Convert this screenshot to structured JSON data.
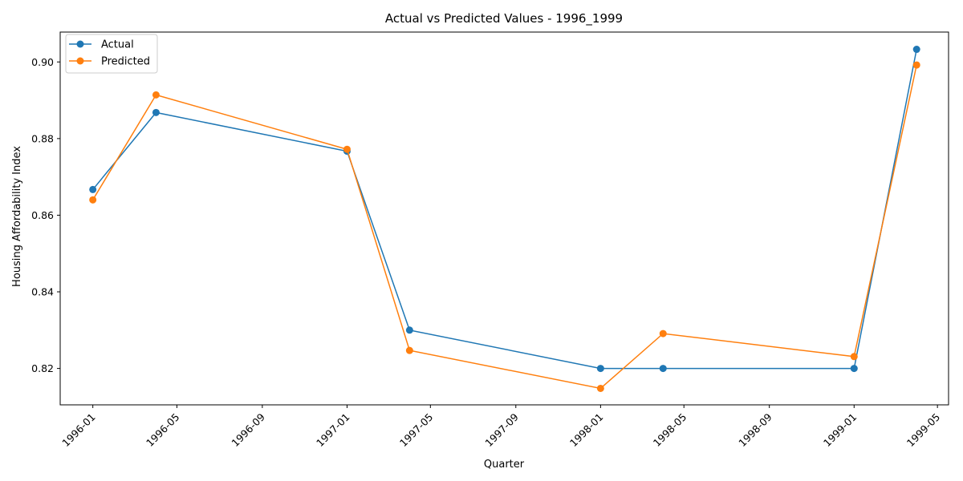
{
  "chart_data": {
    "type": "line",
    "title": "Actual vs Predicted Values - 1996_1999",
    "xlabel": "Quarter",
    "ylabel": "Housing Affordability Index",
    "x": [
      "1996-01-01",
      "1996-04-01",
      "1997-01-01",
      "1997-04-01",
      "1998-01-01",
      "1998-04-01",
      "1999-01-01",
      "1999-04-01"
    ],
    "series": [
      {
        "name": "Actual",
        "color": "#1f77b4",
        "values": [
          0.8667,
          0.8868,
          0.8767,
          0.83,
          0.82,
          0.82,
          0.82,
          0.9033
        ]
      },
      {
        "name": "Predicted",
        "color": "#ff7f0e",
        "values": [
          0.864,
          0.8914,
          0.8772,
          0.8247,
          0.8148,
          0.8291,
          0.8231,
          0.8992
        ]
      }
    ],
    "xticks": [
      "1996-01",
      "1996-05",
      "1996-09",
      "1997-01",
      "1997-05",
      "1997-09",
      "1998-01",
      "1998-05",
      "1998-09",
      "1999-01",
      "1999-05"
    ],
    "yticks": [
      "0.82",
      "0.84",
      "0.86",
      "0.88",
      "0.90"
    ],
    "ylim": [
      0.8105,
      0.9078
    ],
    "xlim": [
      "1995-11-15",
      "1999-05-17"
    ],
    "grid": false,
    "legend_position": "top-left"
  }
}
